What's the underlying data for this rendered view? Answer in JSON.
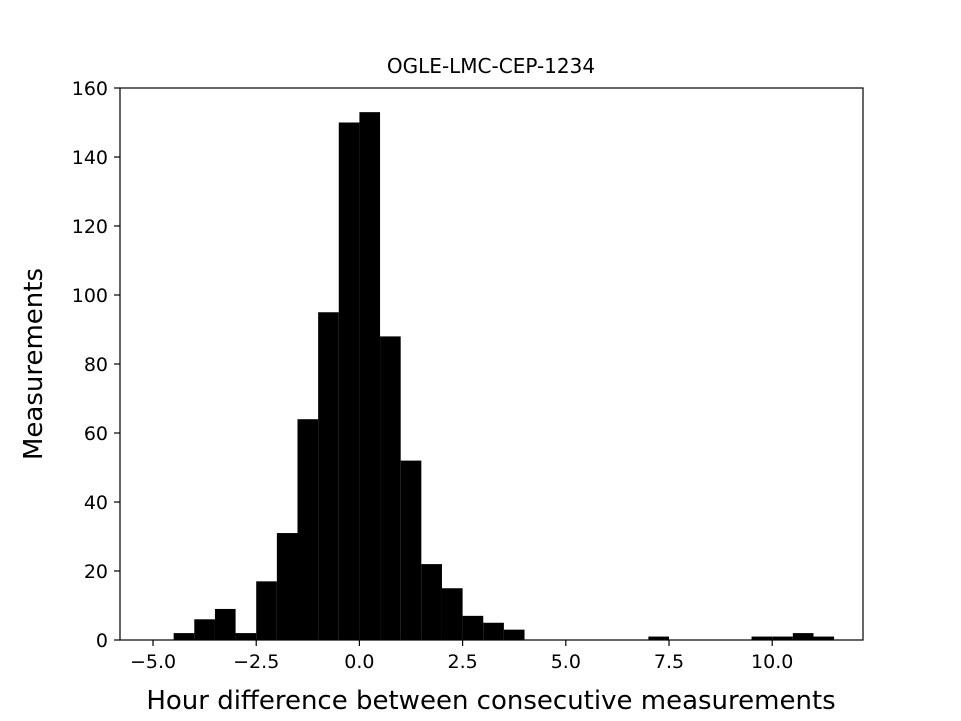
{
  "chart_data": {
    "type": "bar",
    "title": "OGLE-LMC-CEP-1234",
    "xlabel": "Hour difference between consecutive measurements",
    "ylabel": "Measurements",
    "xlim": [
      -5.8,
      12.2
    ],
    "ylim": [
      0,
      160
    ],
    "bin_width": 0.5,
    "bins": [
      {
        "x0": -4.5,
        "count": 2
      },
      {
        "x0": -4.0,
        "count": 6
      },
      {
        "x0": -3.5,
        "count": 9
      },
      {
        "x0": -3.0,
        "count": 2
      },
      {
        "x0": -2.5,
        "count": 17
      },
      {
        "x0": -2.0,
        "count": 31
      },
      {
        "x0": -1.5,
        "count": 64
      },
      {
        "x0": -1.0,
        "count": 95
      },
      {
        "x0": -0.5,
        "count": 150
      },
      {
        "x0": 0.0,
        "count": 153
      },
      {
        "x0": 0.5,
        "count": 88
      },
      {
        "x0": 1.0,
        "count": 52
      },
      {
        "x0": 1.5,
        "count": 22
      },
      {
        "x0": 2.0,
        "count": 15
      },
      {
        "x0": 2.5,
        "count": 7
      },
      {
        "x0": 3.0,
        "count": 5
      },
      {
        "x0": 3.5,
        "count": 3
      },
      {
        "x0": 7.0,
        "count": 1
      },
      {
        "x0": 9.5,
        "count": 1
      },
      {
        "x0": 10.0,
        "count": 1
      },
      {
        "x0": 10.5,
        "count": 2
      },
      {
        "x0": 11.0,
        "count": 1
      }
    ],
    "xticks": [
      -5.0,
      -2.5,
      0.0,
      2.5,
      5.0,
      7.5,
      10.0
    ],
    "xtick_labels": [
      "−5.0",
      "−2.5",
      "0.0",
      "2.5",
      "5.0",
      "7.5",
      "10.0"
    ],
    "yticks": [
      0,
      20,
      40,
      60,
      80,
      100,
      120,
      140,
      160
    ],
    "ytick_labels": [
      "0",
      "20",
      "40",
      "60",
      "80",
      "100",
      "120",
      "140",
      "160"
    ],
    "bar_color": "#000000",
    "grid": false
  }
}
